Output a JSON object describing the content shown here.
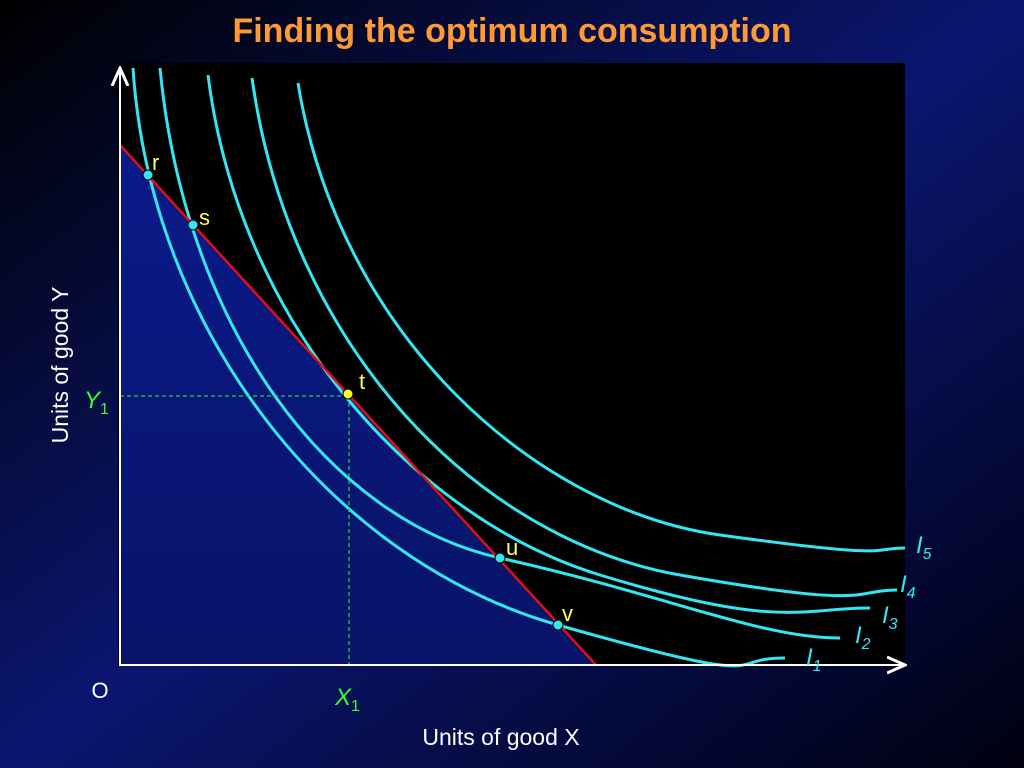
{
  "title": "Finding the optimum consumption",
  "y_axis_label": "Units of good Y",
  "x_axis_label": "Units of good X",
  "origin": "O",
  "y_mark": {
    "letter": "Y",
    "subscript": "1"
  },
  "x_mark": {
    "letter": "X",
    "subscript": "1"
  },
  "points": [
    "r",
    "s",
    "t",
    "u",
    "v"
  ],
  "curves": [
    {
      "letter": "I",
      "subscript": "1"
    },
    {
      "letter": "I",
      "subscript": "2"
    },
    {
      "letter": "I",
      "subscript": "3"
    },
    {
      "letter": "I",
      "subscript": "4"
    },
    {
      "letter": "I",
      "subscript": "5"
    }
  ]
}
